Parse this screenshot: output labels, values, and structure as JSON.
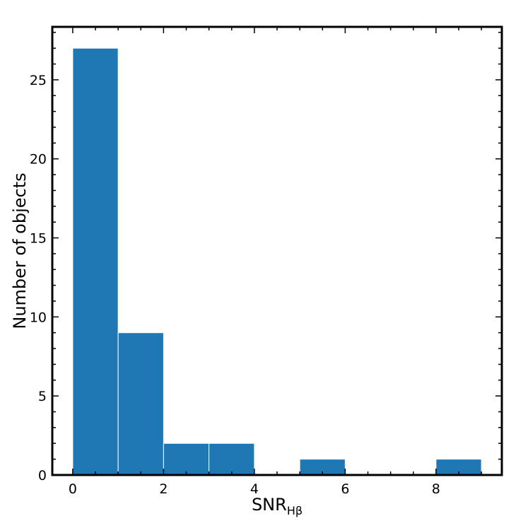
{
  "chart_data": {
    "type": "bar",
    "title": "",
    "xlabel_main": "SNR",
    "xlabel_sub": "Hβ",
    "ylabel": "Number of objects",
    "bins": [
      {
        "x0": 0,
        "x1": 1,
        "count": 27
      },
      {
        "x0": 1,
        "x1": 2,
        "count": 9
      },
      {
        "x0": 2,
        "x1": 3,
        "count": 2
      },
      {
        "x0": 3,
        "x1": 4,
        "count": 2
      },
      {
        "x0": 4,
        "x1": 5,
        "count": 0
      },
      {
        "x0": 5,
        "x1": 6,
        "count": 1
      },
      {
        "x0": 6,
        "x1": 7,
        "count": 0
      },
      {
        "x0": 7,
        "x1": 8,
        "count": 0
      },
      {
        "x0": 8,
        "x1": 9,
        "count": 1
      }
    ],
    "xlim": [
      -0.45,
      9.45
    ],
    "ylim": [
      0,
      28.35
    ],
    "x_ticks": [
      0,
      2,
      4,
      6,
      8
    ],
    "x_tick_labels": [
      "0",
      "2",
      "4",
      "6",
      "8"
    ],
    "x_minor_step": 0.5,
    "y_ticks": [
      0,
      5,
      10,
      15,
      20,
      25
    ],
    "y_tick_labels": [
      "0",
      "5",
      "10",
      "15",
      "20",
      "25"
    ],
    "y_minor_step": 1,
    "grid": false,
    "bar_color": "#1f77b4",
    "bar_edge_color": "#ffffff"
  }
}
